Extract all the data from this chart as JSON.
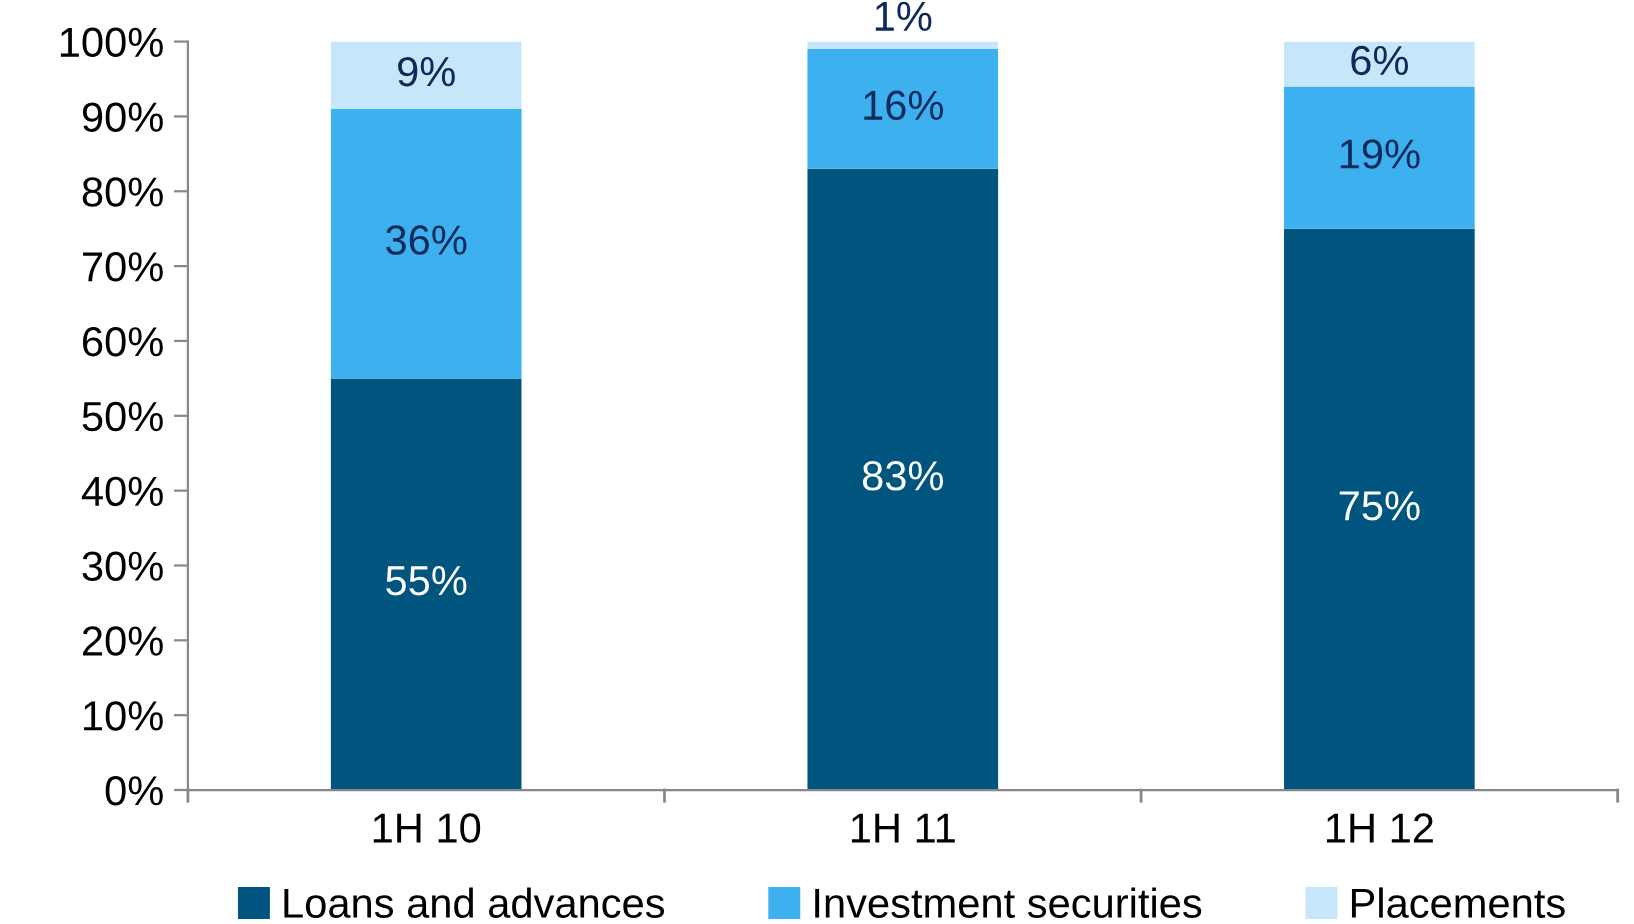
{
  "chart_data": {
    "type": "bar",
    "stacked": true,
    "categories": [
      "1H 10",
      "1H 11",
      "1H 12"
    ],
    "series": [
      {
        "name": "Loans and advances",
        "color": "#00557f",
        "values": [
          55,
          83,
          75
        ]
      },
      {
        "name": "Investment securities",
        "color": "#3db1ef",
        "values": [
          36,
          16,
          19
        ]
      },
      {
        "name": "Placements",
        "color": "#c6e7fa",
        "values": [
          9,
          1,
          6
        ]
      }
    ],
    "ylim": [
      0,
      100
    ],
    "yticks": [
      {
        "value": 0,
        "label": "0%"
      },
      {
        "value": 10,
        "label": "10%"
      },
      {
        "value": 20,
        "label": "20%"
      },
      {
        "value": 30,
        "label": "30%"
      },
      {
        "value": 40,
        "label": "40%"
      },
      {
        "value": 50,
        "label": "50%"
      },
      {
        "value": 60,
        "label": "60%"
      },
      {
        "value": 70,
        "label": "70%"
      },
      {
        "value": 80,
        "label": "80%"
      },
      {
        "value": 90,
        "label": "90%"
      },
      {
        "value": 100,
        "label": "100%"
      }
    ],
    "value_labels": [
      [
        "55%",
        "83%",
        "75%"
      ],
      [
        "36%",
        "16%",
        "19%"
      ],
      [
        "9%",
        "1%",
        "6%"
      ]
    ],
    "legend": "bottom",
    "grid": false
  }
}
